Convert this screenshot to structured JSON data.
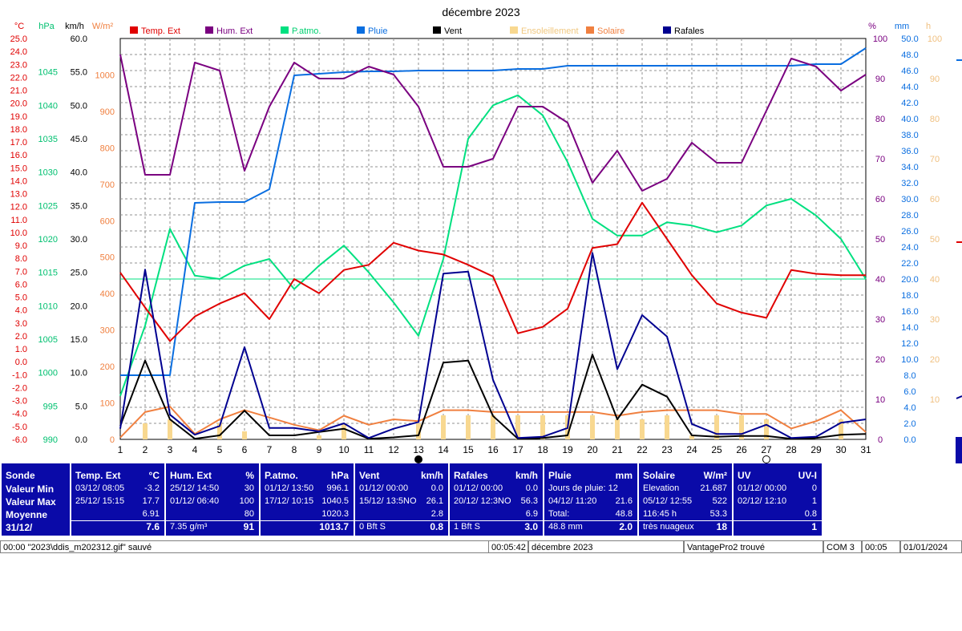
{
  "title": "décembre 2023",
  "colors": {
    "temp": "#e00000",
    "hum": "#7a0080",
    "patmo": "#00e080",
    "pluie": "#0a6ee0",
    "vent": "#000000",
    "ensoleillement": "#f8d890",
    "solaire": "#f08040",
    "rafales": "#000090",
    "panel": "#0a0aa8"
  },
  "axis_units": {
    "temp": "°C",
    "hpa": "hPa",
    "kmh": "km/h",
    "wm2": "W/m²",
    "pct": "%",
    "mm": "mm",
    "h": "h"
  },
  "moon_icons": [
    "new-moon-icon",
    "full-moon-icon"
  ],
  "chart_data": {
    "type": "line",
    "title": "décembre 2023",
    "x": [
      1,
      2,
      3,
      4,
      5,
      6,
      7,
      8,
      9,
      10,
      11,
      12,
      13,
      14,
      15,
      16,
      17,
      18,
      19,
      20,
      21,
      22,
      23,
      24,
      25,
      26,
      27,
      28,
      29,
      30,
      31
    ],
    "x_ticks": [
      "1",
      "2",
      "3",
      "4",
      "5",
      "6",
      "7",
      "8",
      "9",
      "10",
      "11",
      "12",
      "13",
      "14",
      "15",
      "16",
      "17",
      "18",
      "19",
      "20",
      "21",
      "22",
      "23",
      "24",
      "25",
      "26",
      "27",
      "28",
      "29",
      "30",
      "31"
    ],
    "grid": true,
    "legend_position": "top",
    "axes": {
      "temp": {
        "range": [
          -6,
          25
        ],
        "ticks": [
          "25.0",
          "24.0",
          "23.0",
          "22.0",
          "21.0",
          "20.0",
          "19.0",
          "18.0",
          "17.0",
          "16.0",
          "15.0",
          "14.0",
          "13.0",
          "12.0",
          "11.0",
          "10.0",
          "9.0",
          "8.0",
          "7.0",
          "6.0",
          "5.0",
          "4.0",
          "3.0",
          "2.0",
          "1.0",
          "0.0",
          "-1.0",
          "-2.0",
          "-3.0",
          "-4.0",
          "-5.0",
          "-6.0"
        ]
      },
      "hpa": {
        "range": [
          990,
          1050
        ],
        "ticks": [
          "1045",
          "1040",
          "1035",
          "1030",
          "1025",
          "1020",
          "1015",
          "1010",
          "1005",
          "1000",
          "995",
          "990"
        ]
      },
      "kmh": {
        "range": [
          0,
          60
        ],
        "ticks": [
          "60.0",
          "55.0",
          "50.0",
          "45.0",
          "40.0",
          "35.0",
          "30.0",
          "25.0",
          "20.0",
          "15.0",
          "10.0",
          "5.0",
          "0.0"
        ]
      },
      "wm2": {
        "range": [
          0,
          1100
        ],
        "ticks": [
          "1000",
          "900",
          "800",
          "700",
          "600",
          "500",
          "400",
          "300",
          "200",
          "100",
          "0"
        ]
      },
      "pct": {
        "range": [
          0,
          100
        ],
        "ticks": [
          "100",
          "90",
          "80",
          "70",
          "60",
          "50",
          "40",
          "30",
          "20",
          "10",
          "0"
        ]
      },
      "mm": {
        "range": [
          0,
          50
        ],
        "ticks": [
          "50.0",
          "48.0",
          "46.0",
          "44.0",
          "42.0",
          "40.0",
          "38.0",
          "36.0",
          "34.0",
          "32.0",
          "30.0",
          "28.0",
          "26.0",
          "24.0",
          "22.0",
          "20.0",
          "18.0",
          "16.0",
          "14.0",
          "12.0",
          "10.0",
          "8.0",
          "6.0",
          "4.0",
          "2.0",
          "0.0"
        ]
      },
      "h": {
        "range": [
          0,
          100
        ],
        "ticks": [
          "100",
          "90",
          "80",
          "70",
          "60",
          "50",
          "40",
          "30",
          "20",
          "10"
        ]
      }
    },
    "series": [
      {
        "name": "Temp. Ext",
        "key": "temp",
        "axis": "temp",
        "kind": "line",
        "values": [
          6.9,
          4.2,
          1.6,
          3.5,
          4.5,
          5.3,
          3.3,
          6.4,
          5.3,
          7.1,
          7.5,
          9.2,
          8.6,
          8.3,
          7.5,
          6.6,
          2.2,
          2.7,
          4.1,
          8.8,
          9.1,
          12.3,
          9.5,
          6.7,
          4.5,
          3.8,
          3.4,
          7.1,
          6.8,
          6.7,
          6.7
        ]
      },
      {
        "name": "Hum. Ext",
        "key": "hum",
        "axis": "pct",
        "kind": "line",
        "values": [
          96,
          66,
          66,
          94,
          92,
          67,
          83,
          94,
          90,
          90,
          93,
          91,
          83,
          68,
          68,
          70,
          83,
          83,
          79,
          64,
          72,
          62,
          65,
          74,
          69,
          69,
          82,
          95,
          93,
          87,
          91
        ]
      },
      {
        "name": "P.atmo.",
        "key": "patmo",
        "axis": "hpa",
        "kind": "line",
        "values": [
          996.5,
          1007,
          1021.5,
          1014.5,
          1014,
          1016,
          1017,
          1012.5,
          1016,
          1019,
          1015,
          1010.5,
          1005.5,
          1017,
          1035,
          1040,
          1041.5,
          1038.5,
          1031.5,
          1023,
          1020.5,
          1020.5,
          1022.5,
          1022,
          1021,
          1022,
          1025,
          1026,
          1023.5,
          1020,
          1014
        ]
      },
      {
        "name": "Pluie",
        "key": "pluie",
        "axis": "mm",
        "kind": "line",
        "values": [
          8.0,
          8.0,
          8.0,
          29.5,
          29.6,
          29.6,
          31.2,
          45.4,
          45.6,
          45.8,
          45.9,
          45.9,
          46.0,
          46.0,
          46.0,
          46.0,
          46.2,
          46.2,
          46.6,
          46.6,
          46.6,
          46.6,
          46.6,
          46.6,
          46.6,
          46.6,
          46.6,
          46.6,
          46.8,
          46.8,
          48.8
        ]
      },
      {
        "name": "Vent",
        "key": "vent",
        "axis": "kmh",
        "kind": "line",
        "values": [
          2.0,
          11.8,
          3.0,
          0.1,
          0.6,
          4.3,
          0.6,
          0.6,
          1.1,
          1.6,
          0.1,
          0.3,
          0.6,
          11.5,
          11.8,
          3.5,
          0.1,
          0.2,
          0.6,
          12.7,
          3.0,
          8.2,
          6.4,
          0.6,
          0.4,
          0.5,
          0.5,
          0.1,
          0.2,
          0.7,
          0.8
        ]
      },
      {
        "name": "Ensoleillement",
        "key": "ensoleillement",
        "axis": "h",
        "kind": "bar",
        "values": [
          0,
          4,
          5,
          0,
          4,
          2,
          0,
          0,
          1,
          4,
          0,
          0,
          4,
          6,
          6,
          6,
          6,
          6,
          6,
          6,
          5,
          5,
          6,
          1,
          6,
          6,
          5,
          0,
          0,
          5,
          0
        ]
      },
      {
        "name": "Solaire",
        "key": "solaire",
        "axis": "wm2",
        "kind": "line",
        "values": [
          5,
          75,
          90,
          15,
          55,
          80,
          60,
          40,
          25,
          65,
          40,
          55,
          50,
          80,
          80,
          75,
          75,
          75,
          75,
          75,
          65,
          75,
          80,
          80,
          80,
          70,
          70,
          30,
          50,
          80,
          20
        ]
      },
      {
        "name": "Rafales",
        "key": "rafales",
        "axis": "kmh",
        "kind": "line",
        "values": [
          1.6,
          25.4,
          3.7,
          0.7,
          2.0,
          13.8,
          1.7,
          1.7,
          1.2,
          2.4,
          0.2,
          1.6,
          2.6,
          24.8,
          25.1,
          8.9,
          0.2,
          0.4,
          1.7,
          27.9,
          10.5,
          18.6,
          15.4,
          2.3,
          0.8,
          0.8,
          2.2,
          0.2,
          0.4,
          2.5,
          3.0
        ]
      }
    ],
    "reference_lines": [
      {
        "axis": "pct",
        "value": 40,
        "color": "#00e080"
      }
    ],
    "moon_phases": [
      {
        "x": 13,
        "phase": "new"
      },
      {
        "x": 27,
        "phase": "full"
      }
    ]
  },
  "stats_panel": {
    "blocks": [
      {
        "key": "sonde",
        "header": "Sonde",
        "header_unit": "",
        "rows": [
          [
            "Valeur Min"
          ],
          [
            "Valeur Max"
          ],
          [
            "Moyenne"
          ],
          [
            "31/12/"
          ]
        ]
      },
      {
        "key": "temp",
        "header": "Temp. Ext",
        "header_unit": "°C",
        "rows": [
          [
            "03/12/  08:05",
            "-3.2"
          ],
          [
            "25/12/  15:15",
            "17.7"
          ],
          [
            "",
            "6.91"
          ],
          [
            "",
            "7.6"
          ]
        ]
      },
      {
        "key": "hum",
        "header": "Hum. Ext",
        "header_unit": "%",
        "rows": [
          [
            "25/12/  14:50",
            "30"
          ],
          [
            "01/12/  06:40",
            "100"
          ],
          [
            "",
            "80"
          ],
          [
            "7.35 g/m³",
            "91"
          ]
        ]
      },
      {
        "key": "patmo",
        "header": "P.atmo.",
        "header_unit": "hPa",
        "rows": [
          [
            "01/12/  13:50",
            "996.1"
          ],
          [
            "17/12/  10:15",
            "1040.5"
          ],
          [
            "",
            "1020.3"
          ],
          [
            "",
            "1013.7"
          ]
        ]
      },
      {
        "key": "vent",
        "header": "Vent",
        "header_unit": "km/h",
        "rows": [
          [
            "01/12/  00:00",
            "0.0"
          ],
          [
            "15/12/  13:5NO",
            "26.1"
          ],
          [
            "",
            "2.8"
          ],
          [
            "0 Bft S",
            "0.8"
          ]
        ]
      },
      {
        "key": "rafales",
        "header": "Rafales",
        "header_unit": "km/h",
        "rows": [
          [
            "01/12/  00:00",
            "0.0"
          ],
          [
            "20/12/  12:3NO",
            "56.3"
          ],
          [
            "",
            "6.9"
          ],
          [
            "1 Bft S",
            "3.0"
          ]
        ]
      },
      {
        "key": "pluie",
        "header": "Pluie",
        "header_unit": "mm",
        "rows": [
          [
            "Jours de pluie: 12",
            ""
          ],
          [
            "04/12/  11:20",
            "21.6"
          ],
          [
            "Total:",
            "48.8"
          ],
          [
            "48.8 mm",
            "2.0"
          ]
        ]
      },
      {
        "key": "solaire",
        "header": "Solaire",
        "header_unit": "W/m²",
        "rows": [
          [
            "Elevation",
            "21.687"
          ],
          [
            "05/12/  12:55",
            "522"
          ],
          [
            "116:45 h",
            "53.3"
          ],
          [
            "très nuageux",
            "18"
          ]
        ]
      },
      {
        "key": "uv",
        "header": "UV",
        "header_unit": "UV-I",
        "rows": [
          [
            "01/12/  00:00",
            "0"
          ],
          [
            "02/12/  12:10",
            "1"
          ],
          [
            "",
            "0.8"
          ],
          [
            "",
            "1"
          ]
        ]
      }
    ]
  },
  "status_bar": {
    "message": "00:00  \"2023\\ddis_m202312.gif\"  sauvé",
    "elapsed": "00:05:42",
    "period": "décembre 2023",
    "station": "VantagePro2 trouvé",
    "port": "COM 3",
    "time": "00:05",
    "date": "01/01/2024"
  }
}
